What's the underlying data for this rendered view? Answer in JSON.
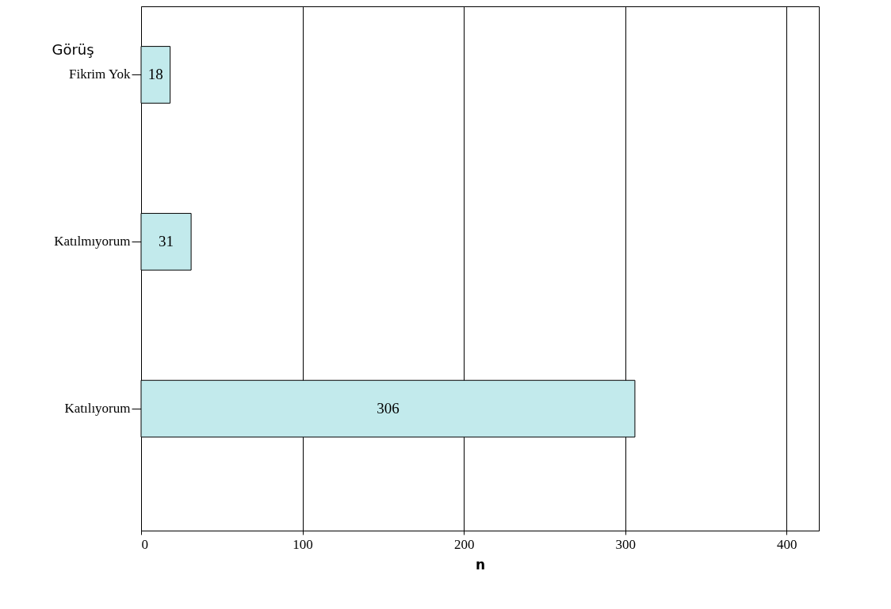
{
  "chart_data": {
    "type": "bar",
    "orientation": "horizontal",
    "ylabel": "Görüş",
    "xlabel": "n",
    "categories": [
      "Fikrim Yok",
      "Katılmıyorum",
      "Katılıyorum"
    ],
    "values": [
      18,
      31,
      306
    ],
    "color": "#c2eaec",
    "xlim": [
      0,
      420
    ],
    "xticks": [
      0,
      100,
      200,
      300,
      400
    ],
    "grid": "x",
    "data_labels": true
  }
}
